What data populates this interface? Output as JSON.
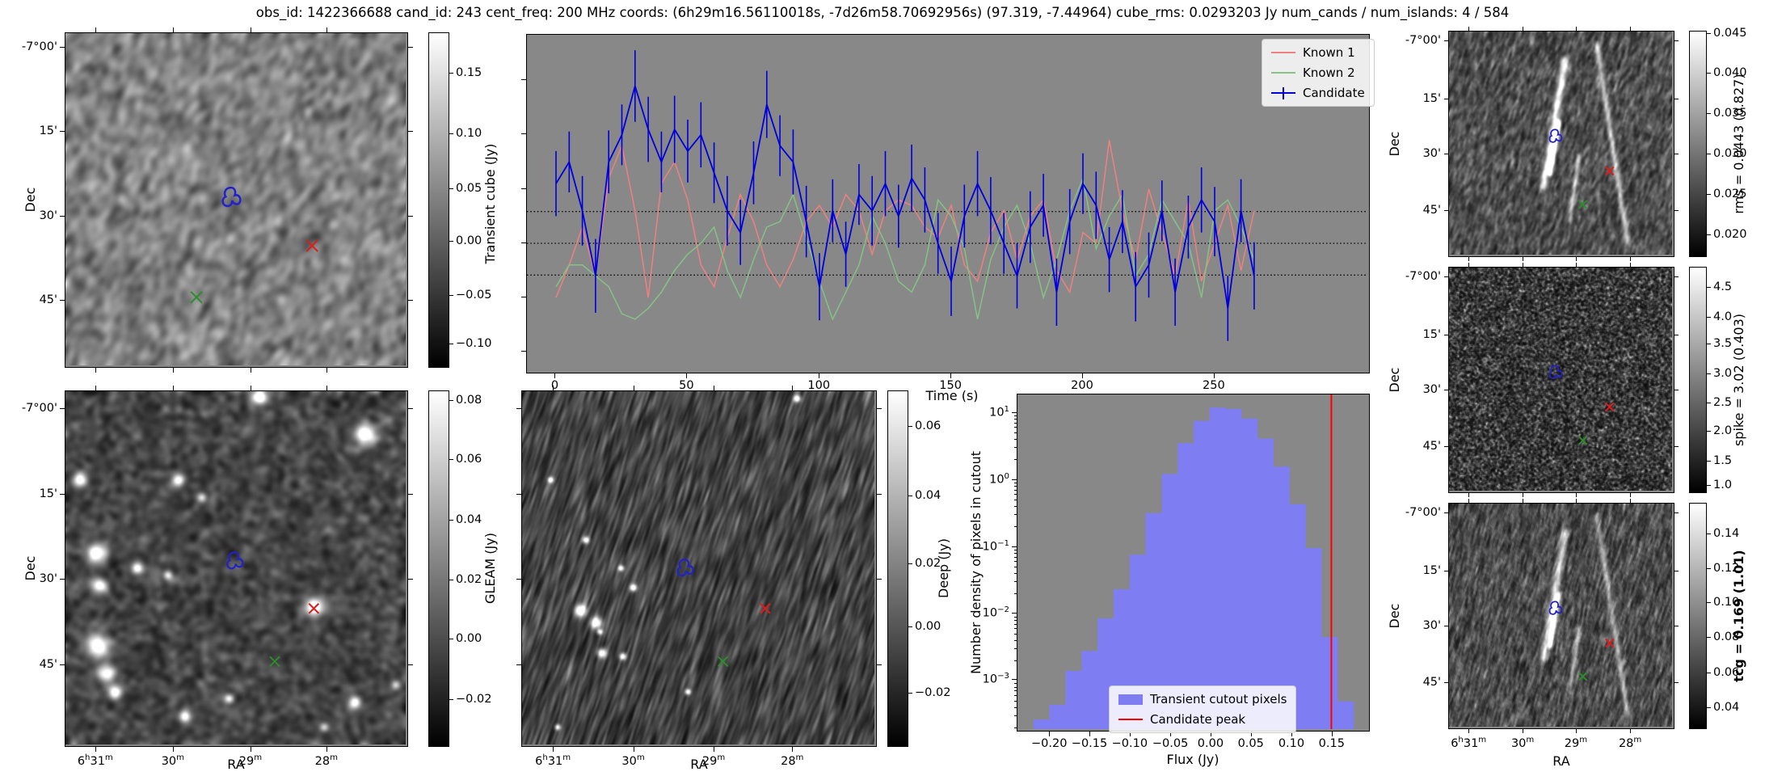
{
  "title": "obs_id: 1422366688 cand_id: 243 cent_freq: 200 MHz coords: (6h29m16.56110018s, -7d26m58.70692956s) (97.319, -7.44964) cube_rms: 0.0293203 Jy num_cands / num_islands: 4 / 584",
  "colors": {
    "candidate": "#0000dd",
    "known1": "#f08080",
    "known2": "#85c285",
    "hist_fill": "#7e7ef2",
    "peak_line": "#ff0000",
    "contour": "#2222cc",
    "known1_marker": "#dd1c1c",
    "known2_marker": "#2e8b2e"
  },
  "cutout_axes": {
    "dec_label": "Dec",
    "ra_label": "RA",
    "dec_ticks": [
      "-7°00'",
      "15'",
      "30'",
      "45'"
    ],
    "ra_ticks": [
      "6h31m",
      "30m",
      "29m",
      "28m"
    ]
  },
  "colorbars": {
    "transient": {
      "ticks": [
        "0.15",
        "0.10",
        "0.05",
        "0.00",
        "−0.05",
        "−0.10"
      ]
    },
    "gleam": {
      "label": "GLEAM (Jy)",
      "ticks": [
        "0.08",
        "0.06",
        "0.04",
        "0.02",
        "0.00",
        "−0.02"
      ]
    },
    "deep": {
      "label": "Deep (Jy)",
      "ticks": [
        "0.06",
        "0.04",
        "0.02",
        "0.00",
        "−0.02"
      ]
    },
    "rms": {
      "label": "rms = 0.0443 (0.827)",
      "ticks": [
        "0.045",
        "0.040",
        "0.035",
        "0.030",
        "0.025",
        "0.020"
      ]
    },
    "spike": {
      "label": "spike = 3.02 (0.403)",
      "ticks": [
        "4.5",
        "4.0",
        "3.5",
        "3.0",
        "2.5",
        "2.0",
        "1.5",
        "1.0"
      ]
    },
    "tcg": {
      "label": "tcg = 0.169 (1.01)",
      "ticks": [
        "0.14",
        "0.12",
        "0.10",
        "0.08",
        "0.06",
        "0.04"
      ]
    }
  },
  "lightcurve": {
    "ylabel": "Transient cube (Jy)",
    "xlabel": "Time (s)",
    "xticks": [
      "0",
      "50",
      "100",
      "150",
      "200",
      "250"
    ],
    "legend": {
      "known1": "Known 1",
      "known2": "Known 2",
      "candidate": "Candidate"
    }
  },
  "histogram": {
    "ylabel": "Number density of pixels in cutout",
    "xlabel": "Flux (Jy)",
    "xticks": [
      "−0.20",
      "−0.15",
      "−0.10",
      "−0.05",
      "0.00",
      "0.05",
      "0.10",
      "0.15"
    ],
    "ytick_exponents": [
      1,
      0,
      -1,
      -2,
      -3
    ],
    "legend": {
      "pixels": "Transient cutout pixels",
      "peak": "Candidate peak"
    }
  },
  "chart_data": [
    {
      "type": "line",
      "title": "",
      "xlabel": "Time (s)",
      "ylabel": "Transient cube (Jy)",
      "xlim": [
        -13,
        295
      ],
      "ylim": [
        -0.121,
        0.192
      ],
      "grid": false,
      "legend_position": "upper right",
      "hlines_dotted": [
        0.0293,
        0.0,
        -0.0293
      ],
      "x": [
        0,
        5,
        10,
        15,
        20,
        25,
        30,
        35,
        40,
        45,
        50,
        55,
        60,
        65,
        70,
        75,
        80,
        85,
        90,
        95,
        100,
        105,
        110,
        115,
        120,
        125,
        130,
        135,
        140,
        145,
        150,
        155,
        160,
        165,
        170,
        175,
        180,
        185,
        190,
        195,
        200,
        205,
        210,
        215,
        220,
        225,
        230,
        235,
        240,
        245,
        250,
        255,
        260,
        265
      ],
      "series": [
        {
          "name": "Known 1",
          "color": "#f08080",
          "values": [
            -0.05,
            -0.02,
            0.015,
            -0.03,
            0.06,
            0.09,
            0.03,
            -0.05,
            0.055,
            0.075,
            0.04,
            -0.02,
            -0.04,
            0.005,
            0.045,
            0.02,
            -0.02,
            -0.04,
            -0.015,
            0.02,
            0.035,
            0.015,
            0.045,
            0.03,
            -0.01,
            0.03,
            0.04,
            0.035,
            0.015,
            0.005,
            0.035,
            -0.02,
            -0.035,
            0.01,
            0.03,
            -0.015,
            0.025,
            0.04,
            -0.025,
            -0.045,
            0.01,
            0.0,
            0.095,
            0.03,
            -0.015,
            0.05,
            0.01,
            -0.03,
            0.04,
            -0.035,
            0.0,
            0.035,
            -0.025,
            0.03
          ]
        },
        {
          "name": "Known 2",
          "color": "#85c285",
          "values": [
            -0.04,
            -0.02,
            -0.02,
            -0.03,
            -0.04,
            -0.065,
            -0.07,
            -0.06,
            -0.045,
            -0.025,
            -0.01,
            0.0,
            0.015,
            -0.025,
            -0.05,
            -0.015,
            0.015,
            0.02,
            0.045,
            0.005,
            -0.035,
            -0.07,
            -0.045,
            -0.02,
            0.025,
            0.0,
            -0.035,
            -0.045,
            -0.02,
            0.04,
            0.025,
            -0.005,
            -0.07,
            -0.015,
            0.015,
            0.035,
            0.0,
            -0.05,
            -0.015,
            0.03,
            0.06,
            -0.005,
            0.025,
            0.045,
            -0.03,
            -0.01,
            0.04,
            0.02,
            0.0,
            -0.05,
            0.03,
            0.04,
            0.015,
            -0.015
          ]
        },
        {
          "name": "Candidate",
          "color": "#0000dd",
          "values": [
            0.055,
            0.075,
            0.03,
            -0.03,
            0.075,
            0.1,
            0.145,
            0.105,
            0.075,
            0.105,
            0.085,
            0.1,
            0.065,
            0.03,
            0.01,
            0.065,
            0.128,
            0.09,
            0.075,
            0.02,
            -0.04,
            0.03,
            -0.01,
            0.045,
            0.03,
            0.055,
            0.025,
            0.06,
            0.04,
            0.0,
            -0.035,
            0.025,
            0.055,
            0.03,
            0.0,
            -0.03,
            0.015,
            0.035,
            -0.045,
            0.02,
            0.055,
            0.035,
            -0.015,
            0.02,
            -0.04,
            -0.02,
            0.03,
            -0.045,
            0.015,
            0.04,
            0.02,
            -0.06,
            0.03,
            -0.03
          ],
          "errors": [
            0.03,
            0.028,
            0.032,
            0.034,
            0.029,
            0.028,
            0.033,
            0.03,
            0.028,
            0.031,
            0.029,
            0.03,
            0.028,
            0.032,
            0.03,
            0.029,
            0.031,
            0.028,
            0.03,
            0.033,
            0.031,
            0.029,
            0.03,
            0.028,
            0.032,
            0.03,
            0.029,
            0.031,
            0.03,
            0.028,
            0.032,
            0.029,
            0.03,
            0.031,
            0.028,
            0.03,
            0.033,
            0.029,
            0.031,
            0.03,
            0.028,
            0.031,
            0.03,
            0.029,
            0.032,
            0.03,
            0.028,
            0.031,
            0.029,
            0.03,
            0.032,
            0.03,
            0.029,
            0.031
          ]
        }
      ]
    },
    {
      "type": "bar",
      "title": "",
      "xlabel": "Flux (Jy)",
      "ylabel": "Number density of pixels in cutout",
      "yscale": "log",
      "xlim": [
        -0.24,
        0.197
      ],
      "ylim": [
        0.00017,
        20
      ],
      "bin_start": -0.22,
      "bin_width": 0.02,
      "values": [
        0.00024,
        0.0004,
        0.0013,
        0.0026,
        0.008,
        0.022,
        0.073,
        0.31,
        1.2,
        3.5,
        7.6,
        12,
        11.5,
        8.2,
        4.1,
        1.55,
        0.42,
        0.092,
        0.0042,
        0.00045
      ],
      "vline": {
        "x": 0.152,
        "color": "#ff0000",
        "label": "Candidate peak"
      },
      "legend": [
        "Transient cutout pixels",
        "Candidate peak"
      ],
      "legend_position": "lower center"
    }
  ]
}
